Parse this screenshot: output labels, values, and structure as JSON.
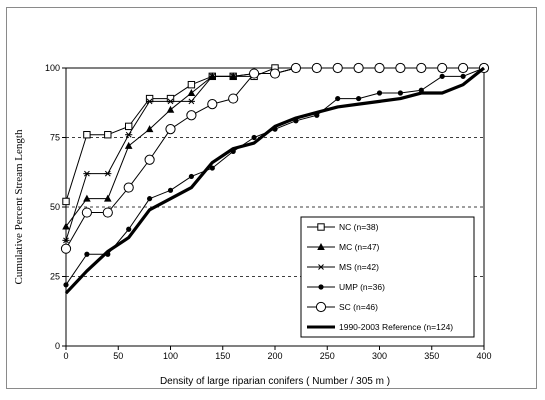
{
  "chart_data": {
    "type": "line",
    "title": "",
    "xlabel": "Density of large riparian conifers ( Number / 305 m )",
    "ylabel": "Cumulative Percent Stream Length",
    "xlim": [
      0,
      400
    ],
    "ylim": [
      0,
      100
    ],
    "x_ticks": [
      0,
      50,
      100,
      150,
      200,
      250,
      300,
      350,
      400
    ],
    "y_ticks": [
      0,
      25,
      50,
      75,
      100
    ],
    "gridlines": "horizontal dashed at 25, 50, 75",
    "legend_position": "lower-right",
    "series": [
      {
        "name": "NC (n=38)",
        "marker": "square-open",
        "x": [
          0,
          20,
          40,
          60,
          80,
          100,
          120,
          140,
          160,
          180,
          200,
          220,
          240,
          260,
          280,
          300,
          320,
          340,
          360,
          380,
          400
        ],
        "y": [
          52,
          76,
          76,
          79,
          89,
          89,
          94,
          97,
          97,
          97,
          100,
          100,
          100,
          100,
          100,
          100,
          100,
          100,
          100,
          100,
          100
        ]
      },
      {
        "name": "MC (n=47)",
        "marker": "triangle-filled",
        "x": [
          0,
          20,
          40,
          60,
          80,
          100,
          120,
          140,
          160,
          180,
          200,
          220,
          240,
          260,
          280,
          300,
          320,
          340,
          360,
          380,
          400
        ],
        "y": [
          43,
          53,
          53,
          72,
          78,
          85,
          91,
          97,
          97,
          98,
          98,
          100,
          100,
          100,
          100,
          100,
          100,
          100,
          100,
          100,
          100
        ]
      },
      {
        "name": "MS (n=42)",
        "marker": "asterisk",
        "x": [
          0,
          20,
          40,
          60,
          80,
          100,
          120,
          140,
          160,
          180,
          200,
          220,
          240,
          260,
          280,
          300,
          320,
          340,
          360,
          380,
          400
        ],
        "y": [
          38,
          62,
          62,
          76,
          88,
          88,
          88,
          97,
          97,
          98,
          98,
          100,
          100,
          100,
          100,
          100,
          100,
          100,
          100,
          100,
          100
        ]
      },
      {
        "name": "UMP (n=36)",
        "marker": "circle-filled",
        "x": [
          0,
          20,
          40,
          60,
          80,
          100,
          120,
          140,
          160,
          180,
          200,
          220,
          240,
          260,
          280,
          300,
          320,
          340,
          360,
          380,
          400
        ],
        "y": [
          22,
          33,
          33,
          42,
          53,
          56,
          61,
          64,
          70,
          75,
          78,
          81,
          83,
          89,
          89,
          91,
          91,
          92,
          97,
          97,
          100
        ]
      },
      {
        "name": "SC (n=46)",
        "marker": "circle-open",
        "x": [
          0,
          20,
          40,
          60,
          80,
          100,
          120,
          140,
          160,
          180,
          200,
          220,
          240,
          260,
          280,
          300,
          320,
          340,
          360,
          380,
          400
        ],
        "y": [
          35,
          48,
          48,
          57,
          67,
          78,
          83,
          87,
          89,
          98,
          98,
          100,
          100,
          100,
          100,
          100,
          100,
          100,
          100,
          100,
          100
        ]
      },
      {
        "name": "1990-2003 Reference (n=124)",
        "marker": "none",
        "line": "thick",
        "x": [
          0,
          20,
          40,
          60,
          80,
          100,
          120,
          140,
          160,
          180,
          200,
          220,
          240,
          260,
          280,
          300,
          320,
          340,
          360,
          380,
          400
        ],
        "y": [
          19,
          27,
          34,
          39,
          49,
          53,
          57,
          66,
          71,
          73,
          79,
          82,
          84,
          86,
          87,
          88,
          89,
          91,
          91,
          94,
          100
        ]
      }
    ]
  }
}
